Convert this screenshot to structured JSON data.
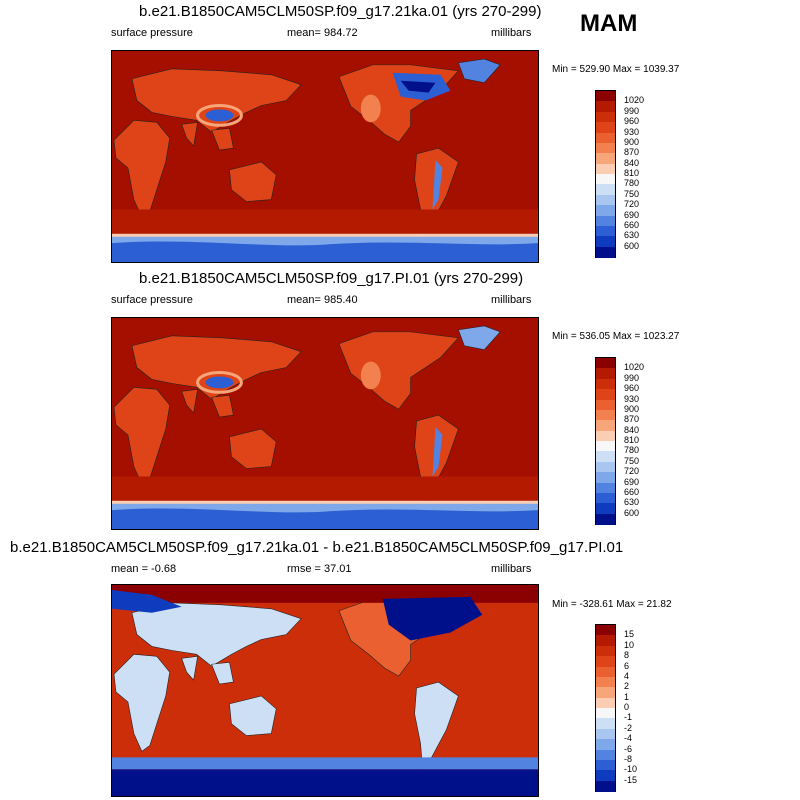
{
  "season": "MAM",
  "panels": [
    {
      "title": "b.e21.B1850CAM5CLM50SP.f09_g17.21ka.01 (yrs 270-299)",
      "left_label": "surface pressure",
      "center_label": "mean= 984.72",
      "right_label": "millibars",
      "minmax": "Min = 529.90 Max = 1039.37",
      "colorbar": {
        "labels": [
          "1020",
          "990",
          "960",
          "930",
          "900",
          "870",
          "840",
          "810",
          "780",
          "750",
          "720",
          "690",
          "660",
          "630",
          "600"
        ],
        "colors": [
          "#8b0000",
          "#b31a00",
          "#cc2e0a",
          "#de4418",
          "#ea6030",
          "#f2814f",
          "#f7a67a",
          "#fbcdb3",
          "#f7f7f7",
          "#cddff5",
          "#a8c6f0",
          "#7ea8ea",
          "#5283e0",
          "#2b5fd3",
          "#0f3cbf",
          "#00108a"
        ]
      },
      "map_style": "glacial-pressure"
    },
    {
      "title": "b.e21.B1850CAM5CLM50SP.f09_g17.PI.01 (yrs 270-299)",
      "left_label": "surface pressure",
      "center_label": "mean= 985.40",
      "right_label": "millibars",
      "minmax": "Min = 536.05 Max = 1023.27",
      "colorbar": {
        "labels": [
          "1020",
          "990",
          "960",
          "930",
          "900",
          "870",
          "840",
          "810",
          "780",
          "750",
          "720",
          "690",
          "660",
          "630",
          "600"
        ],
        "colors": [
          "#8b0000",
          "#b31a00",
          "#cc2e0a",
          "#de4418",
          "#ea6030",
          "#f2814f",
          "#f7a67a",
          "#fbcdb3",
          "#f7f7f7",
          "#cddff5",
          "#a8c6f0",
          "#7ea8ea",
          "#5283e0",
          "#2b5fd3",
          "#0f3cbf",
          "#00108a"
        ]
      },
      "map_style": "pi-pressure"
    },
    {
      "title": "b.e21.B1850CAM5CLM50SP.f09_g17.21ka.01 - b.e21.B1850CAM5CLM50SP.f09_g17.PI.01",
      "left_label": "mean =  -0.68",
      "center_label": "rmse =  37.01",
      "right_label": "millibars",
      "minmax": "Min = -328.61 Max =  21.82",
      "colorbar": {
        "labels": [
          "15",
          "10",
          "8",
          "6",
          "4",
          "2",
          "1",
          "0",
          "-1",
          "-2",
          "-4",
          "-6",
          "-8",
          "-10",
          "-15"
        ],
        "colors": [
          "#8b0000",
          "#b31a00",
          "#cc2e0a",
          "#de4418",
          "#ea6030",
          "#f2814f",
          "#f7a67a",
          "#fbcdb3",
          "#f7f7f7",
          "#cddff5",
          "#a8c6f0",
          "#7ea8ea",
          "#5283e0",
          "#2b5fd3",
          "#0f3cbf",
          "#00108a"
        ]
      },
      "map_style": "difference"
    }
  ]
}
